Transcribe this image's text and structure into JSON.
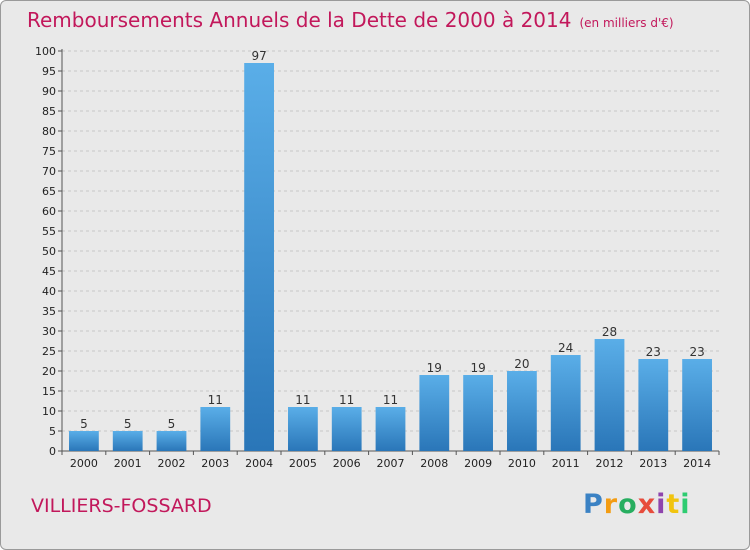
{
  "title": "Remboursements Annuels de la Dette de 2000 à 2014",
  "subtitle": "(en milliers d'€)",
  "town": "VILLIERS-FOSSARD",
  "logo": [
    "P",
    "r",
    "o",
    "x",
    "i",
    "t",
    "i"
  ],
  "colors": {
    "title": "#c2185b",
    "bar_top": "#5aaee8",
    "bar_bottom": "#2a76b8",
    "background": "#e9e9e9"
  },
  "chart_data": {
    "type": "bar",
    "title": "Remboursements Annuels de la Dette de 2000 à 2014",
    "subtitle": "(en milliers d'€)",
    "categories": [
      "2000",
      "2001",
      "2002",
      "2003",
      "2004",
      "2005",
      "2006",
      "2007",
      "2008",
      "2009",
      "2010",
      "2011",
      "2012",
      "2013",
      "2014"
    ],
    "values": [
      5,
      5,
      5,
      11,
      97,
      11,
      11,
      11,
      19,
      19,
      20,
      24,
      28,
      23,
      23
    ],
    "ylim": [
      0,
      100
    ],
    "yticks": [
      0,
      5,
      10,
      15,
      20,
      25,
      30,
      35,
      40,
      45,
      50,
      55,
      60,
      65,
      70,
      75,
      80,
      85,
      90,
      95,
      100
    ],
    "grid": true,
    "data_labels": true
  }
}
